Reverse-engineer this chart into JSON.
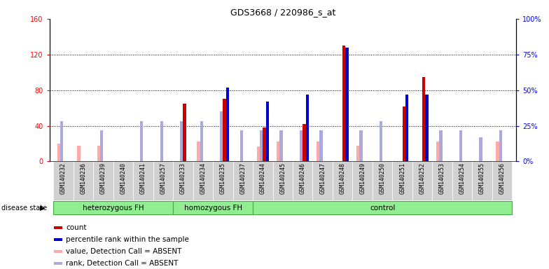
{
  "title": "GDS3668 / 220986_s_at",
  "samples": [
    "GSM140232",
    "GSM140236",
    "GSM140239",
    "GSM140240",
    "GSM140241",
    "GSM140257",
    "GSM140233",
    "GSM140234",
    "GSM140235",
    "GSM140237",
    "GSM140244",
    "GSM140245",
    "GSM140246",
    "GSM140247",
    "GSM140248",
    "GSM140249",
    "GSM140250",
    "GSM140251",
    "GSM140252",
    "GSM140253",
    "GSM140254",
    "GSM140255",
    "GSM140256"
  ],
  "groups": [
    {
      "label": "heterozygous FH",
      "start": 0,
      "end": 6
    },
    {
      "label": "homozygous FH",
      "start": 6,
      "end": 10
    },
    {
      "label": "control",
      "start": 10,
      "end": 23
    }
  ],
  "count_values": [
    0,
    0,
    0,
    0,
    0,
    0,
    65,
    0,
    70,
    0,
    38,
    0,
    42,
    0,
    130,
    0,
    0,
    62,
    95,
    0,
    0,
    0,
    0
  ],
  "percentile_values": [
    0,
    0,
    0,
    0,
    0,
    0,
    0,
    0,
    52,
    0,
    42,
    0,
    47,
    0,
    80,
    0,
    0,
    47,
    47,
    0,
    0,
    0,
    0
  ],
  "value_absent": [
    20,
    18,
    18,
    0,
    0,
    0,
    0,
    22,
    0,
    0,
    17,
    22,
    0,
    22,
    0,
    18,
    0,
    0,
    0,
    22,
    0,
    0,
    22
  ],
  "rank_absent": [
    28,
    0,
    22,
    0,
    28,
    28,
    28,
    28,
    35,
    22,
    22,
    22,
    22,
    22,
    0,
    22,
    28,
    0,
    0,
    22,
    22,
    17,
    22
  ],
  "ylim_left": [
    0,
    160
  ],
  "ylim_right": [
    0,
    100
  ],
  "yticks_left": [
    0,
    40,
    80,
    120,
    160
  ],
  "ytick_labels_left": [
    "0",
    "40",
    "80",
    "120",
    "160"
  ],
  "yticks_right": [
    0,
    25,
    50,
    75,
    100
  ],
  "ytick_labels_right": [
    "0%",
    "25%",
    "50%",
    "75%",
    "100%"
  ],
  "color_count": "#cc0000",
  "color_percentile": "#0000cc",
  "color_value_absent": "#ffaaaa",
  "color_rank_absent": "#aaaadd",
  "group_color": "#90ee90",
  "group_border": "#44aa44",
  "label_bg": "#d0d0d0"
}
